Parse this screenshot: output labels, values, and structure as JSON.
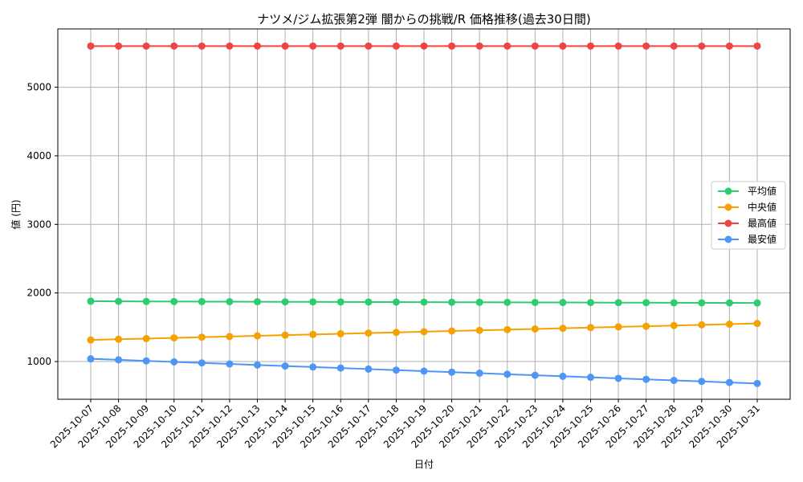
{
  "chart_data": {
    "type": "line",
    "title": "ナツメ/ジム拡張第2弾 闇からの挑戦/R 価格推移(過去30日間)",
    "xlabel": "日付",
    "ylabel": "値 (円)",
    "ylim": [
      450,
      5850
    ],
    "yticks": [
      1000,
      2000,
      3000,
      4000,
      5000
    ],
    "grid": true,
    "legend_position": "center-right",
    "categories": [
      "2025-10-07",
      "2025-10-08",
      "2025-10-09",
      "2025-10-10",
      "2025-10-11",
      "2025-10-12",
      "2025-10-13",
      "2025-10-14",
      "2025-10-15",
      "2025-10-16",
      "2025-10-17",
      "2025-10-18",
      "2025-10-19",
      "2025-10-20",
      "2025-10-21",
      "2025-10-22",
      "2025-10-23",
      "2025-10-24",
      "2025-10-25",
      "2025-10-26",
      "2025-10-27",
      "2025-10-28",
      "2025-10-29",
      "2025-10-30",
      "2025-10-31"
    ],
    "series": [
      {
        "name": "平均値",
        "color": "#2ecc71",
        "values": [
          1880,
          1878,
          1876,
          1875,
          1874,
          1873,
          1872,
          1871,
          1870,
          1869,
          1868,
          1867,
          1866,
          1865,
          1864,
          1863,
          1862,
          1861,
          1860,
          1859,
          1858,
          1857,
          1856,
          1855,
          1854
        ]
      },
      {
        "name": "中央値",
        "color": "#f5a100",
        "values": [
          1315,
          1325,
          1335,
          1345,
          1355,
          1365,
          1375,
          1385,
          1395,
          1405,
          1415,
          1425,
          1435,
          1445,
          1455,
          1465,
          1475,
          1485,
          1495,
          1505,
          1515,
          1525,
          1535,
          1545,
          1555
        ]
      },
      {
        "name": "最高値",
        "color": "#f04444",
        "values": [
          5600,
          5600,
          5600,
          5600,
          5600,
          5600,
          5600,
          5600,
          5600,
          5600,
          5600,
          5600,
          5600,
          5600,
          5600,
          5600,
          5600,
          5600,
          5600,
          5600,
          5600,
          5600,
          5600,
          5600,
          5600
        ]
      },
      {
        "name": "最安値",
        "color": "#4d96f5",
        "values": [
          1040,
          1025,
          1010,
          995,
          980,
          965,
          950,
          935,
          920,
          905,
          890,
          875,
          860,
          845,
          830,
          815,
          800,
          785,
          770,
          755,
          740,
          725,
          710,
          695,
          680
        ]
      }
    ]
  }
}
